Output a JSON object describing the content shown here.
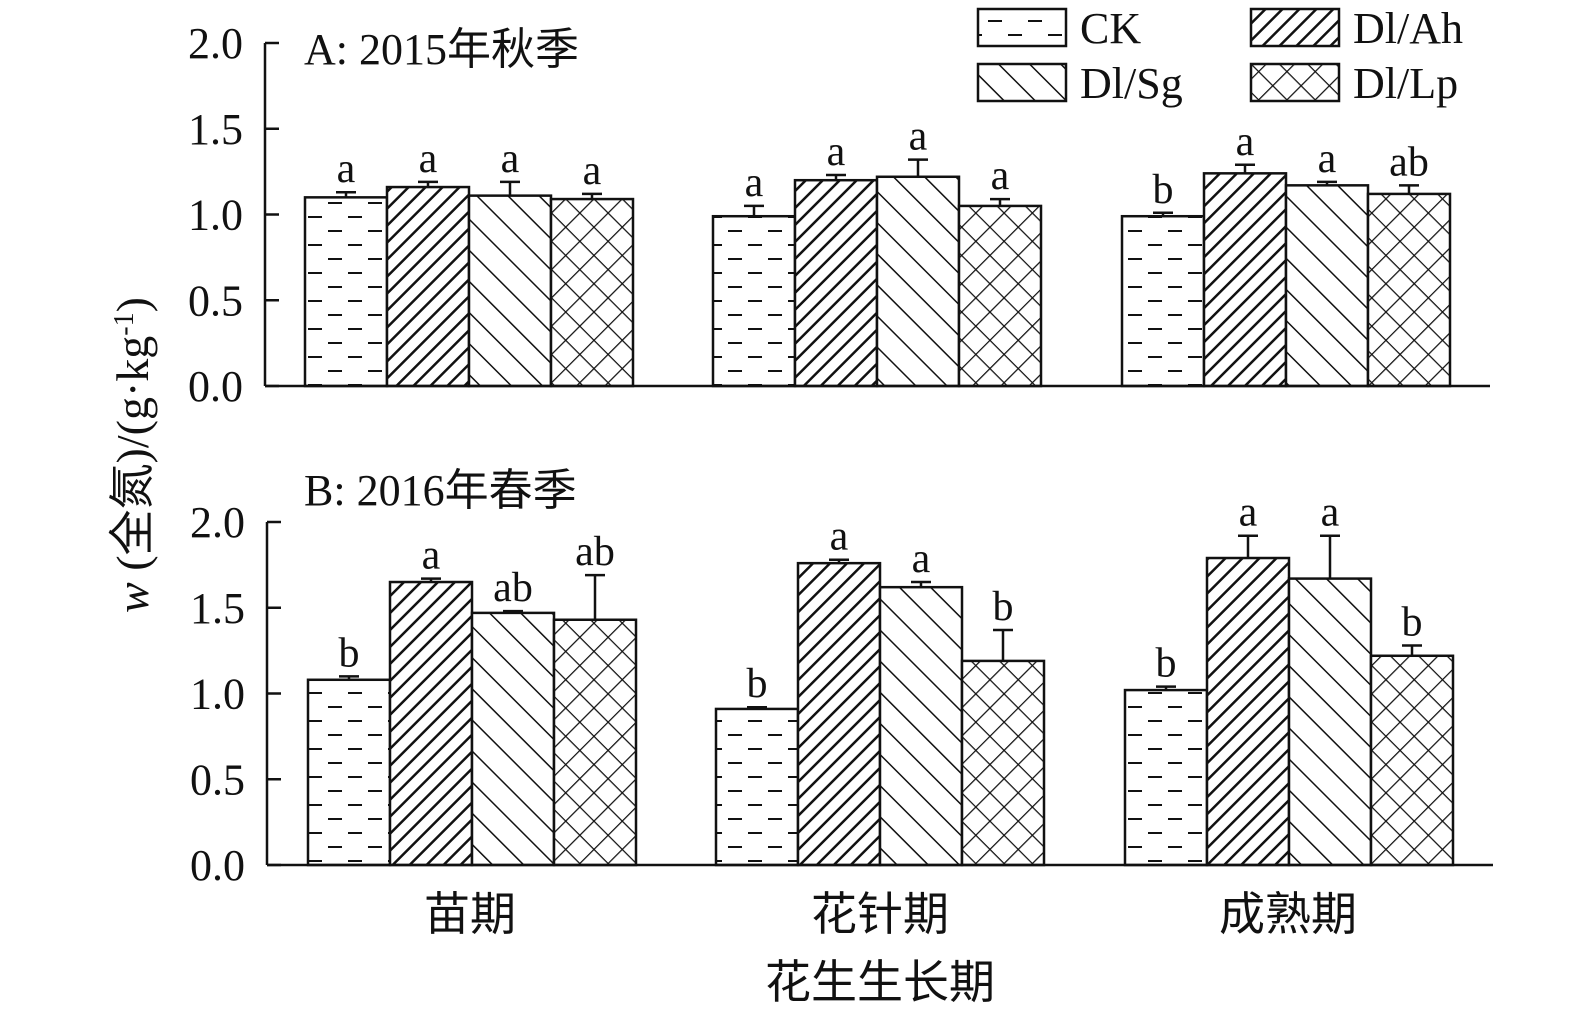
{
  "chart_data": [
    {
      "type": "bar",
      "title": "A: 2015年秋季",
      "categories": [
        "苗期",
        "花针期",
        "成熟期"
      ],
      "series": [
        {
          "name": "CK",
          "values": [
            1.1,
            0.99,
            0.99
          ],
          "errors": [
            0.03,
            0.06,
            0.02
          ],
          "sig": [
            "a",
            "a",
            "b"
          ]
        },
        {
          "name": "Dl/Ah",
          "values": [
            1.16,
            1.2,
            1.24
          ],
          "errors": [
            0.03,
            0.03,
            0.05
          ],
          "sig": [
            "a",
            "a",
            "a"
          ]
        },
        {
          "name": "Dl/Sg",
          "values": [
            1.11,
            1.22,
            1.17
          ],
          "errors": [
            0.08,
            0.1,
            0.02
          ],
          "sig": [
            "a",
            "a",
            "a"
          ]
        },
        {
          "name": "Dl/Lp",
          "values": [
            1.09,
            1.05,
            1.12
          ],
          "errors": [
            0.03,
            0.04,
            0.05
          ],
          "sig": [
            "a",
            "a",
            "ab"
          ]
        }
      ],
      "ylim": [
        0,
        2.0
      ],
      "yticks": [
        "0.0",
        "0.5",
        "1.0",
        "1.5",
        "2.0"
      ],
      "xlabel": "",
      "ylabel": ""
    },
    {
      "type": "bar",
      "title": "B: 2016年春季",
      "categories": [
        "苗期",
        "花针期",
        "成熟期"
      ],
      "series": [
        {
          "name": "CK",
          "values": [
            1.08,
            0.91,
            1.02
          ],
          "errors": [
            0.02,
            0.01,
            0.02
          ],
          "sig": [
            "b",
            "b",
            "b"
          ]
        },
        {
          "name": "Dl/Ah",
          "values": [
            1.65,
            1.76,
            1.79
          ],
          "errors": [
            0.02,
            0.02,
            0.13
          ],
          "sig": [
            "a",
            "a",
            "a"
          ]
        },
        {
          "name": "Dl/Sg",
          "values": [
            1.47,
            1.62,
            1.67
          ],
          "errors": [
            0.01,
            0.03,
            0.25
          ],
          "sig": [
            "ab",
            "a",
            "a"
          ]
        },
        {
          "name": "Dl/Lp",
          "values": [
            1.43,
            1.19,
            1.22
          ],
          "errors": [
            0.26,
            0.18,
            0.06
          ],
          "sig": [
            "ab",
            "b",
            "b"
          ]
        }
      ],
      "ylim": [
        0,
        2.0
      ],
      "yticks": [
        "0.0",
        "0.5",
        "1.0",
        "1.5",
        "2.0"
      ],
      "xlabel": "花生生长期",
      "ylabel": "w (全氮)/(g·kg-1)"
    }
  ],
  "legend": [
    {
      "name": "CK",
      "pattern": "dash"
    },
    {
      "name": "Dl/Ah",
      "pattern": "diag-up"
    },
    {
      "name": "Dl/Sg",
      "pattern": "diag-down"
    },
    {
      "name": "Dl/Lp",
      "pattern": "cross"
    }
  ],
  "colors": {
    "ink": "#111111",
    "fill": "#ffffff"
  }
}
